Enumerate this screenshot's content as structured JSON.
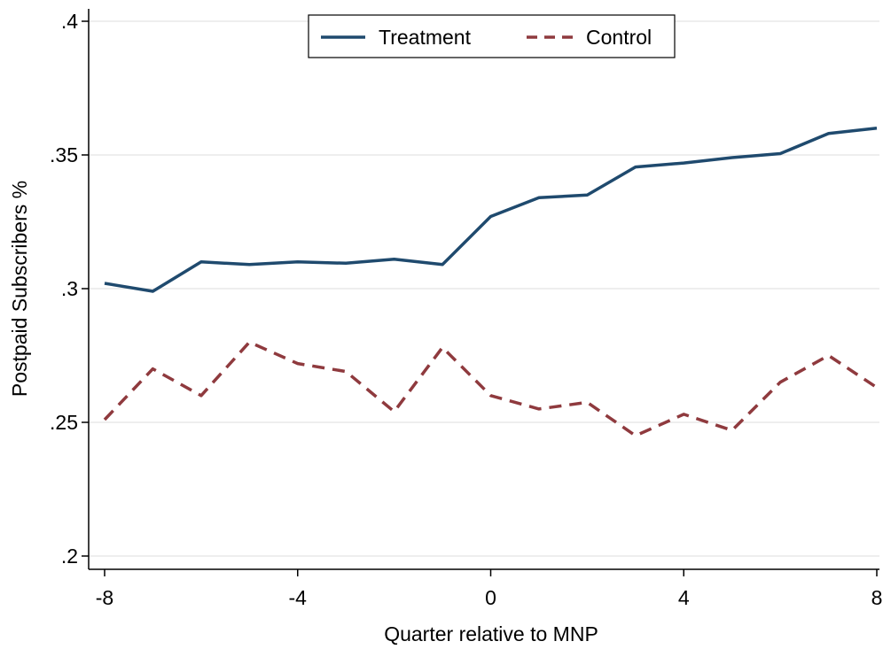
{
  "chart_data": {
    "type": "line",
    "title": "",
    "xlabel": "Quarter relative to MNP",
    "ylabel": "Postpaid Subscribers %",
    "xlim": [
      -8,
      8
    ],
    "ylim": [
      0.195,
      0.402
    ],
    "x": [
      -8,
      -7,
      -6,
      -5,
      -4,
      -3,
      -2,
      -1,
      0,
      1,
      2,
      3,
      4,
      5,
      6,
      7,
      8
    ],
    "xticks": [
      -8,
      -4,
      0,
      4,
      8
    ],
    "xtick_labels": [
      "-8",
      "-4",
      "0",
      "4",
      "8"
    ],
    "yticks": [
      0.2,
      0.25,
      0.3,
      0.35,
      0.4
    ],
    "ytick_labels": [
      ".2",
      ".25",
      ".3",
      ".35",
      ".4"
    ],
    "grid": true,
    "legend_position": "top-center",
    "series": [
      {
        "name": "Treatment",
        "style": "solid",
        "color": "#1f4a6e",
        "values": [
          0.302,
          0.299,
          0.31,
          0.309,
          0.31,
          0.3095,
          0.311,
          0.309,
          0.327,
          0.334,
          0.335,
          0.3455,
          0.347,
          0.349,
          0.3505,
          0.358,
          0.36
        ]
      },
      {
        "name": "Control",
        "style": "dashed",
        "color": "#8f3a3e",
        "values": [
          0.251,
          0.27,
          0.26,
          0.28,
          0.272,
          0.269,
          0.254,
          0.278,
          0.26,
          0.255,
          0.2575,
          0.245,
          0.253,
          0.247,
          0.265,
          0.275,
          0.263
        ]
      }
    ]
  }
}
